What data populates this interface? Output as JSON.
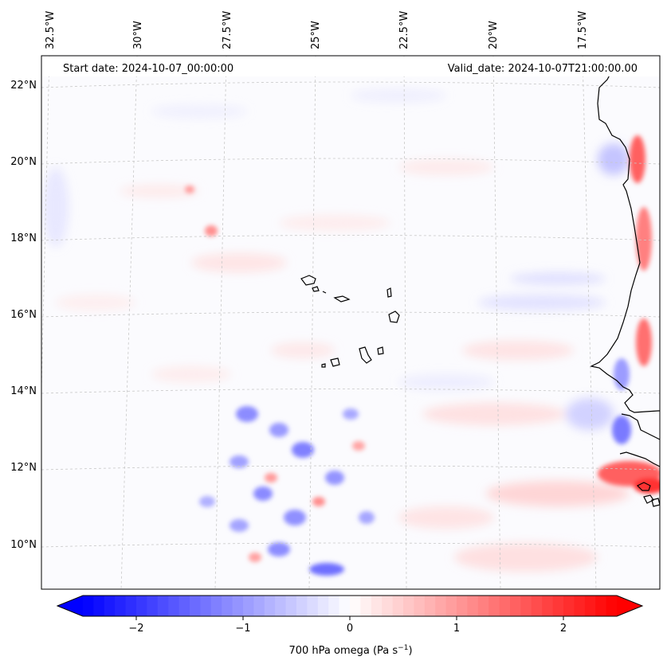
{
  "map": {
    "start_date_text": "Start date: 2024-10-07_00:00:00",
    "valid_date_text": "Valid_date: 2024-10-07T21:00:00.00",
    "lon_labels": [
      "32.5°W",
      "30°W",
      "27.5°W",
      "25°W",
      "22.5°W",
      "20°W",
      "17.5°W"
    ],
    "lat_labels": [
      "22°N",
      "20°N",
      "18°N",
      "16°N",
      "14°N",
      "12°N",
      "10°N"
    ],
    "field": "700 hPa omega",
    "units": "Pa s⁻¹"
  },
  "colorbar": {
    "label_main": "700 hPa omega (Pa s",
    "label_sup": "−1",
    "label_close": ")",
    "ticks": [
      "−2",
      "−1",
      "0",
      "1",
      "2"
    ],
    "tick_values": [
      -2,
      -1,
      0,
      1,
      2
    ],
    "range": [
      -2.5,
      2.5
    ],
    "extend": "both",
    "colormap": "bwr",
    "colors": {
      "min": "#0000ff",
      "mid": "#ffffff",
      "max": "#ff0000"
    }
  },
  "style": {
    "coastline_color": "#000000",
    "gridline_color": "#bbbbbb"
  }
}
